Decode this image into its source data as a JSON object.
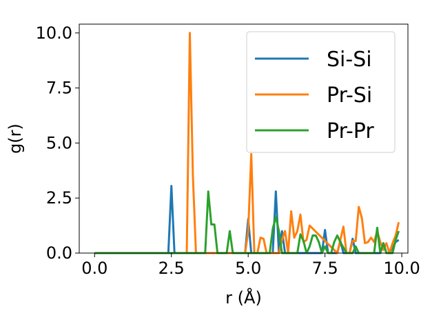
{
  "chart_data": {
    "type": "line",
    "xlabel": "r (Å)",
    "ylabel": "g(r)",
    "xlim": [
      -0.5,
      10.2
    ],
    "ylim": [
      0,
      10.4
    ],
    "xticks": [
      "0.0",
      "2.5",
      "5.0",
      "7.5",
      "10.0"
    ],
    "yticks": [
      "0.0",
      "2.5",
      "5.0",
      "7.5",
      "10.0"
    ],
    "grid": false,
    "legend": "top-right",
    "series": [
      {
        "name": "Si-Si",
        "color": "#1f77b4",
        "x": [
          0.0,
          2.4,
          2.5,
          2.6,
          4.9,
          5.0,
          5.1,
          5.8,
          5.9,
          6.0,
          6.1,
          6.2,
          7.4,
          7.5,
          7.6,
          7.9,
          8.0,
          8.1,
          8.3,
          8.4,
          8.5,
          9.3,
          9.4,
          9.5,
          9.6,
          9.7,
          9.8,
          9.9
        ],
        "y": [
          0.0,
          0.0,
          3.05,
          0.0,
          0.0,
          1.55,
          0.0,
          0.0,
          2.8,
          0.0,
          1.0,
          0.0,
          0.0,
          1.05,
          0.0,
          0.0,
          0.55,
          0.0,
          0.0,
          0.65,
          0.0,
          0.0,
          0.45,
          0.0,
          0.0,
          0.25,
          0.5,
          0.6
        ]
      },
      {
        "name": "Pr-Si",
        "color": "#ff7f0e",
        "x": [
          0.0,
          3.0,
          3.1,
          3.2,
          3.3,
          4.9,
          5.0,
          5.1,
          5.2,
          5.3,
          5.4,
          5.5,
          5.6,
          5.7,
          6.0,
          6.1,
          6.2,
          6.3,
          6.4,
          6.5,
          6.6,
          6.7,
          6.8,
          6.9,
          7.0,
          7.9,
          8.0,
          8.1,
          8.2,
          8.3,
          8.4,
          8.5,
          8.6,
          8.7,
          8.8,
          8.9,
          9.0,
          9.1,
          9.2,
          9.3,
          9.4,
          9.5,
          9.6,
          9.7,
          9.8,
          9.9
        ],
        "y": [
          0.0,
          0.0,
          10.0,
          3.5,
          0.0,
          0.0,
          1.0,
          4.5,
          0.0,
          0.0,
          0.7,
          0.65,
          0.0,
          0.0,
          0.0,
          0.6,
          1.0,
          0.0,
          1.9,
          0.7,
          1.0,
          1.75,
          0.5,
          0.6,
          1.25,
          0.0,
          0.6,
          1.2,
          0.0,
          0.0,
          0.55,
          0.55,
          2.1,
          1.6,
          0.45,
          0.5,
          0.7,
          0.5,
          1.0,
          0.5,
          0.15,
          0.45,
          0.0,
          0.45,
          0.8,
          1.4
        ]
      },
      {
        "name": "Pr-Pr",
        "color": "#2ca02c",
        "x": [
          0.0,
          3.6,
          3.7,
          3.8,
          3.9,
          4.0,
          4.3,
          4.4,
          4.5,
          5.6,
          5.7,
          5.8,
          5.9,
          6.0,
          6.1,
          6.2,
          6.5,
          6.6,
          6.7,
          6.8,
          6.9,
          7.0,
          7.1,
          7.2,
          7.3,
          7.4,
          7.5,
          7.6,
          7.7,
          7.8,
          7.9,
          8.0,
          8.1,
          8.2,
          8.3,
          8.4,
          8.5,
          8.6,
          8.7,
          8.8,
          9.1,
          9.2,
          9.3,
          9.4,
          9.5,
          9.6,
          9.7,
          9.8,
          9.9
        ],
        "y": [
          0.0,
          0.0,
          2.8,
          1.3,
          1.3,
          0.0,
          0.0,
          1.0,
          0.0,
          0.0,
          0.0,
          1.1,
          1.65,
          1.0,
          0.0,
          0.0,
          0.0,
          0.0,
          0.85,
          0.55,
          0.0,
          0.3,
          0.8,
          0.8,
          0.5,
          0.0,
          0.3,
          0.0,
          0.0,
          0.5,
          0.8,
          0.5,
          0.25,
          0.0,
          0.0,
          0.0,
          0.3,
          0.0,
          0.0,
          0.0,
          0.0,
          1.15,
          0.0,
          0.45,
          0.0,
          0.0,
          0.0,
          0.6,
          1.0
        ]
      }
    ]
  }
}
